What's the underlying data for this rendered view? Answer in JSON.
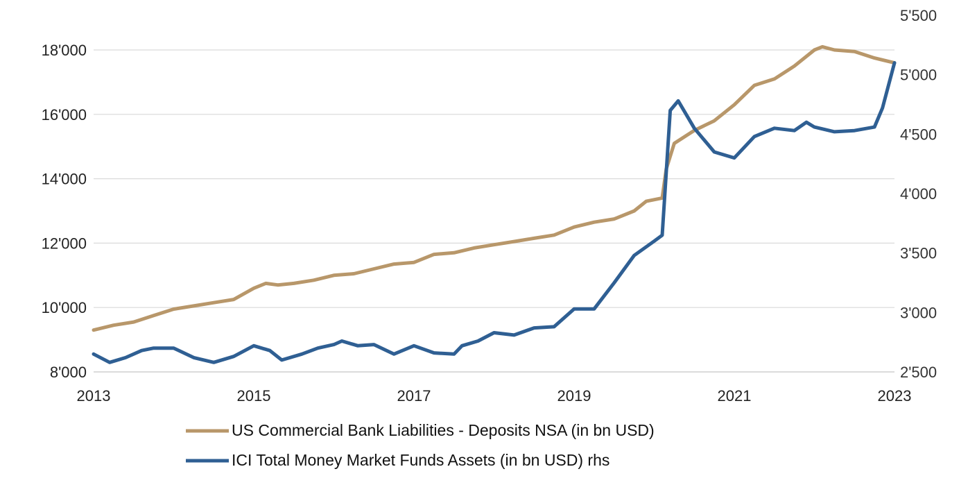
{
  "chart_data": {
    "type": "line",
    "title": "",
    "x_ticks": [
      "2013",
      "2015",
      "2017",
      "2019",
      "2021",
      "2023"
    ],
    "xlim": [
      2013,
      2023
    ],
    "y_left": {
      "ylim": [
        8000,
        18000
      ],
      "ticks": [
        "8'000",
        "10'000",
        "12'000",
        "14'000",
        "16'000",
        "18'000"
      ],
      "tick_values": [
        8000,
        10000,
        12000,
        14000,
        16000,
        18000
      ]
    },
    "y_right": {
      "ylim": [
        2500,
        5500
      ],
      "ticks": [
        "2'500",
        "3'000",
        "3'500",
        "4'000",
        "4'500",
        "5'000",
        "5'500"
      ],
      "tick_values": [
        2500,
        3000,
        3500,
        4000,
        4500,
        5000,
        5500
      ]
    },
    "grid": true,
    "legend_position": "bottom",
    "series": [
      {
        "name": "US Commercial Bank Liabilities - Deposits NSA (in bn USD)",
        "axis": "left",
        "color": "#b8976a",
        "points": [
          [
            2013.0,
            9300
          ],
          [
            2013.25,
            9450
          ],
          [
            2013.5,
            9550
          ],
          [
            2013.75,
            9750
          ],
          [
            2014.0,
            9950
          ],
          [
            2014.25,
            10050
          ],
          [
            2014.5,
            10150
          ],
          [
            2014.75,
            10250
          ],
          [
            2015.0,
            10600
          ],
          [
            2015.15,
            10750
          ],
          [
            2015.3,
            10700
          ],
          [
            2015.5,
            10750
          ],
          [
            2015.75,
            10850
          ],
          [
            2016.0,
            11000
          ],
          [
            2016.25,
            11050
          ],
          [
            2016.5,
            11200
          ],
          [
            2016.75,
            11350
          ],
          [
            2017.0,
            11400
          ],
          [
            2017.25,
            11650
          ],
          [
            2017.5,
            11700
          ],
          [
            2017.75,
            11850
          ],
          [
            2018.0,
            11950
          ],
          [
            2018.25,
            12050
          ],
          [
            2018.5,
            12150
          ],
          [
            2018.75,
            12250
          ],
          [
            2019.0,
            12500
          ],
          [
            2019.25,
            12650
          ],
          [
            2019.5,
            12750
          ],
          [
            2019.75,
            13000
          ],
          [
            2019.9,
            13300
          ],
          [
            2020.1,
            13400
          ],
          [
            2020.15,
            14300
          ],
          [
            2020.25,
            15100
          ],
          [
            2020.5,
            15500
          ],
          [
            2020.75,
            15800
          ],
          [
            2021.0,
            16300
          ],
          [
            2021.25,
            16900
          ],
          [
            2021.5,
            17100
          ],
          [
            2021.75,
            17500
          ],
          [
            2022.0,
            18000
          ],
          [
            2022.1,
            18100
          ],
          [
            2022.25,
            18000
          ],
          [
            2022.5,
            17950
          ],
          [
            2022.75,
            17750
          ],
          [
            2023.0,
            17600
          ]
        ]
      },
      {
        "name": "ICI Total Money Market Funds Assets (in bn USD) rhs",
        "axis": "right",
        "color": "#2f5f93",
        "points": [
          [
            2013.0,
            2650
          ],
          [
            2013.2,
            2580
          ],
          [
            2013.4,
            2620
          ],
          [
            2013.6,
            2680
          ],
          [
            2013.75,
            2700
          ],
          [
            2014.0,
            2700
          ],
          [
            2014.25,
            2620
          ],
          [
            2014.5,
            2580
          ],
          [
            2014.75,
            2630
          ],
          [
            2015.0,
            2720
          ],
          [
            2015.2,
            2680
          ],
          [
            2015.35,
            2600
          ],
          [
            2015.6,
            2650
          ],
          [
            2015.8,
            2700
          ],
          [
            2016.0,
            2730
          ],
          [
            2016.1,
            2760
          ],
          [
            2016.3,
            2720
          ],
          [
            2016.5,
            2730
          ],
          [
            2016.75,
            2650
          ],
          [
            2017.0,
            2720
          ],
          [
            2017.25,
            2660
          ],
          [
            2017.5,
            2650
          ],
          [
            2017.6,
            2720
          ],
          [
            2017.8,
            2760
          ],
          [
            2018.0,
            2830
          ],
          [
            2018.25,
            2810
          ],
          [
            2018.5,
            2870
          ],
          [
            2018.75,
            2880
          ],
          [
            2019.0,
            3030
          ],
          [
            2019.25,
            3030
          ],
          [
            2019.5,
            3250
          ],
          [
            2019.75,
            3480
          ],
          [
            2020.0,
            3600
          ],
          [
            2020.1,
            3650
          ],
          [
            2020.2,
            4700
          ],
          [
            2020.3,
            4780
          ],
          [
            2020.5,
            4550
          ],
          [
            2020.75,
            4350
          ],
          [
            2021.0,
            4300
          ],
          [
            2021.25,
            4480
          ],
          [
            2021.5,
            4550
          ],
          [
            2021.75,
            4530
          ],
          [
            2021.9,
            4600
          ],
          [
            2022.0,
            4560
          ],
          [
            2022.25,
            4520
          ],
          [
            2022.5,
            4530
          ],
          [
            2022.75,
            4560
          ],
          [
            2022.85,
            4720
          ],
          [
            2023.0,
            5100
          ]
        ]
      }
    ]
  }
}
